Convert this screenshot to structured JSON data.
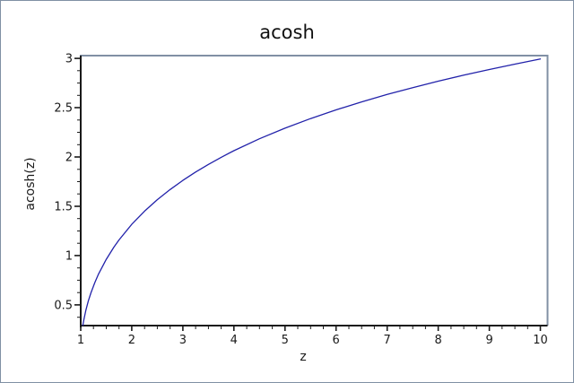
{
  "window": {
    "background": "#ffffff",
    "border_color": "#8090a4"
  },
  "chart_data": {
    "type": "line",
    "title": "acosh",
    "xlabel": "z",
    "ylabel": "acosh(z)",
    "grid": false,
    "legend": null,
    "axis_color": "#1a1a1a",
    "frame_color": "#8090a4",
    "x_axis": {
      "min": 1,
      "max": 10.14,
      "major_ticks": [
        1,
        2,
        3,
        4,
        5,
        6,
        7,
        8,
        9,
        10
      ],
      "minor_step": 0.25
    },
    "y_axis": {
      "min": 0.29,
      "max": 3.028,
      "major_ticks": [
        0.5,
        1,
        1.5,
        2,
        2.5,
        3
      ],
      "minor_step": 0.125
    },
    "series": [
      {
        "name": "acosh(z)",
        "color": "#2222aa",
        "points": [
          [
            1.043,
            0.2923
          ],
          [
            1.06,
            0.3448
          ],
          [
            1.08,
            0.3974
          ],
          [
            1.1,
            0.4436
          ],
          [
            1.15,
            0.5412
          ],
          [
            1.2,
            0.6224
          ],
          [
            1.275,
            0.7257
          ],
          [
            1.35,
            0.8141
          ],
          [
            1.5,
            0.9624
          ],
          [
            1.65,
            1.0861
          ],
          [
            1.75,
            1.1588
          ],
          [
            2,
            1.317
          ],
          [
            2.25,
            1.4507
          ],
          [
            2.5,
            1.5668
          ],
          [
            2.75,
            1.6699
          ],
          [
            3,
            1.7627
          ],
          [
            3.25,
            1.8473
          ],
          [
            3.5,
            1.9248
          ],
          [
            3.75,
            1.9966
          ],
          [
            4,
            2.0634
          ],
          [
            4.5,
            2.1846
          ],
          [
            5,
            2.2924
          ],
          [
            5.5,
            2.3895
          ],
          [
            6,
            2.4779
          ],
          [
            6.5,
            2.559
          ],
          [
            7,
            2.6339
          ],
          [
            7.5,
            2.7036
          ],
          [
            8,
            2.7687
          ],
          [
            8.5,
            2.8297
          ],
          [
            9,
            2.8873
          ],
          [
            9.5,
            2.9417
          ],
          [
            10,
            2.9932
          ]
        ]
      }
    ]
  }
}
